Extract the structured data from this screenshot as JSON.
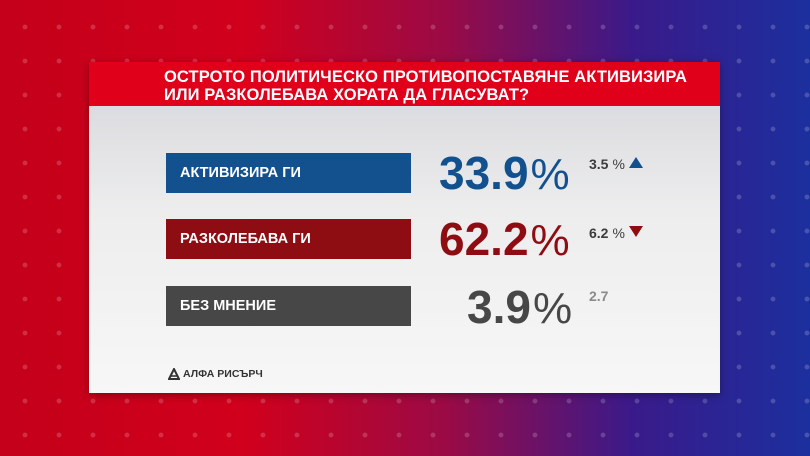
{
  "title": {
    "line1": "ОСТРОТО ПОЛИТИЧЕСКО ПРОТИВОПОСТАВЯНЕ АКТИВИЗИРА",
    "line2": "ИЛИ РАЗКОЛЕБАВА ХОРАТА ДА ГЛАСУВАТ?"
  },
  "colors": {
    "blue": "#12508e",
    "red": "#8e0d12",
    "gray": "#474747",
    "title_band": "#e0001a"
  },
  "chart_data": {
    "type": "table",
    "title": "ОСТРОТО ПОЛИТИЧЕСКО ПРОТИВОПОСТАВЯНЕ АКТИВИЗИРА ИЛИ РАЗКОЛЕБАВА ХОРАТА ДА ГЛАСУВАТ?",
    "unit": "%",
    "rows": [
      {
        "label": "АКТИВИЗИРА ГИ",
        "value": "33.9",
        "change": "3.5",
        "direction": "up"
      },
      {
        "label": "РАЗКОЛЕБАВА ГИ",
        "value": "62.2",
        "change": "6.2",
        "direction": "down"
      },
      {
        "label": "БЕЗ МНЕНИЕ",
        "value": "3.9",
        "change": "2.7",
        "direction": "none"
      }
    ]
  },
  "logo": {
    "text": "АЛФА РИСЪРЧ",
    "icon": "alpha-research-logo-icon"
  }
}
